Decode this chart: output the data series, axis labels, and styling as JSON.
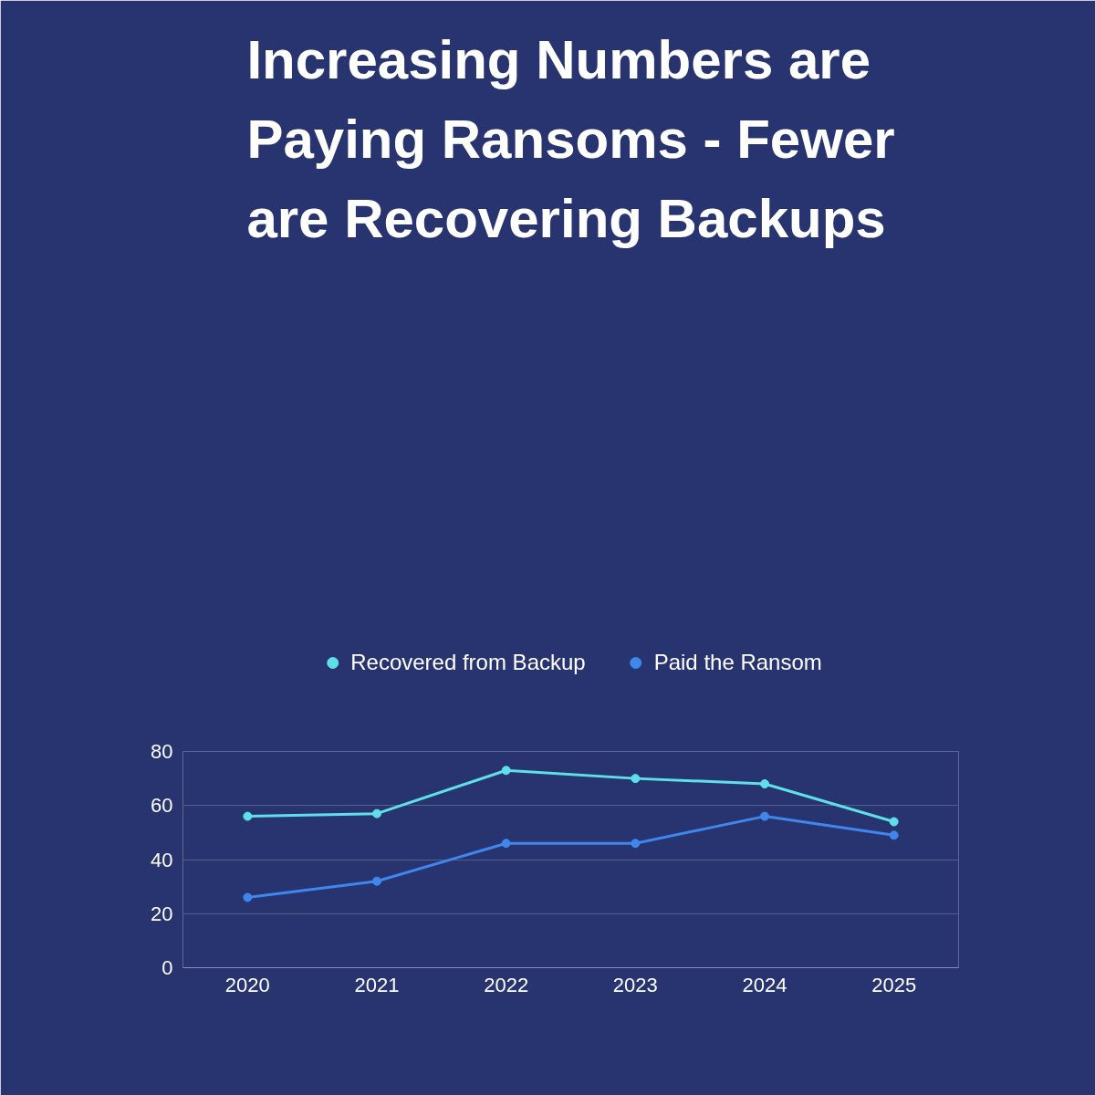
{
  "chart_data": {
    "type": "line",
    "title": "Increasing Numbers are\nPaying Ransoms - Fewer\nare Recovering Backups",
    "categories": [
      "2020",
      "2021",
      "2022",
      "2023",
      "2024",
      "2025"
    ],
    "series": [
      {
        "name": "Recovered from Backup",
        "color": "#5fe0e8",
        "values": [
          56,
          57,
          73,
          70,
          68,
          54
        ]
      },
      {
        "name": "Paid the Ransom",
        "color": "#3f87ec",
        "values": [
          26,
          32,
          46,
          46,
          56,
          49
        ]
      }
    ],
    "ylim": [
      0,
      80
    ],
    "yticks": [
      0,
      20,
      40,
      60,
      80
    ],
    "grid": "y",
    "legend": "top",
    "marker": "circle",
    "line_style": "solid"
  }
}
